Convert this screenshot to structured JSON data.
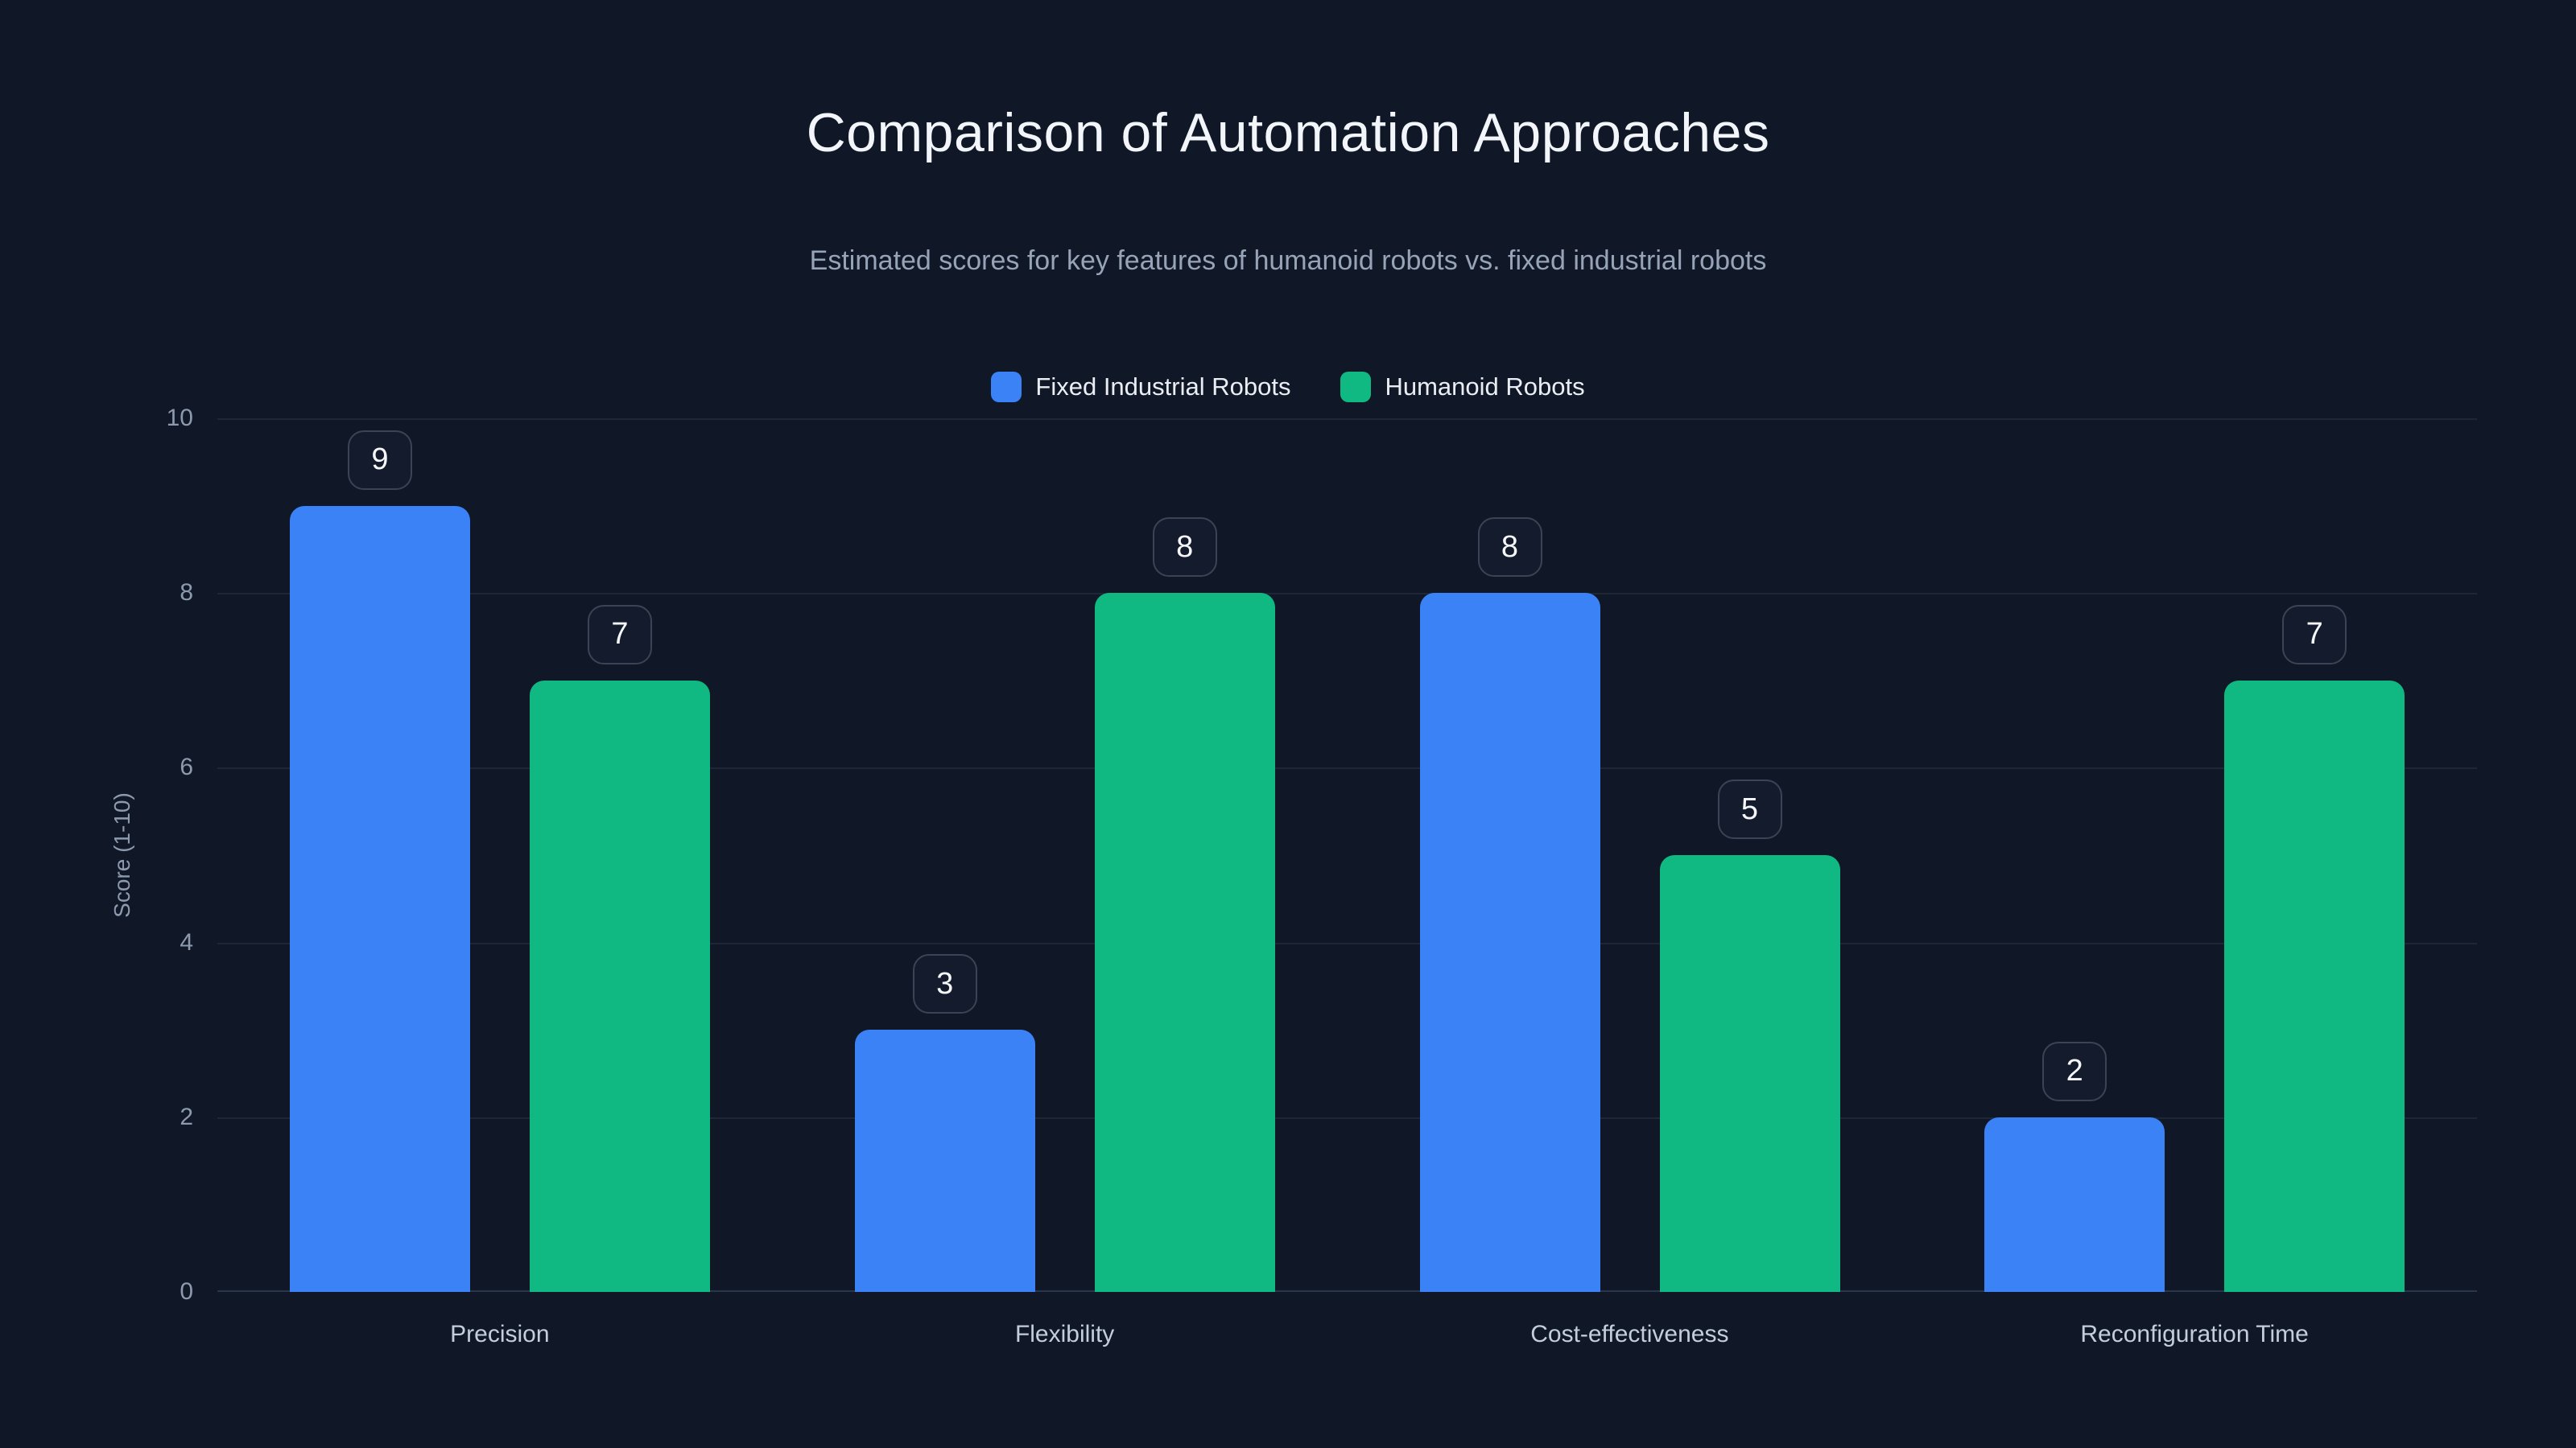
{
  "chart_data": {
    "type": "bar",
    "title": "Comparison of Automation Approaches",
    "subtitle": "Estimated scores for key features of humanoid robots vs. fixed industrial robots",
    "categories": [
      "Precision",
      "Flexibility",
      "Cost-effectiveness",
      "Reconfiguration Time"
    ],
    "series": [
      {
        "name": "Fixed Industrial Robots",
        "color": "#3b82f6",
        "values": [
          9,
          3,
          8,
          2
        ]
      },
      {
        "name": "Humanoid Robots",
        "color": "#10b981",
        "values": [
          7,
          8,
          5,
          7
        ]
      }
    ],
    "xlabel": "",
    "ylabel": "Score (1-10)",
    "ylim": [
      0,
      10
    ],
    "yticks": [
      0,
      2,
      4,
      6,
      8,
      10
    ],
    "grid": "horizontal gridlines only",
    "legend_position": "top center",
    "value_labels": "rounded badge above each bar"
  },
  "colors": {
    "background": "#101828",
    "title_text": "#f2f6fa",
    "subtitle_text": "#97a3b6",
    "legend_text": "#eaeef4",
    "tick_text": "#8d9aae",
    "category_text": "#c4cedb",
    "gridline": "#1e2737",
    "baseline": "#2a3649",
    "badge_border": "#3b4354",
    "badge_background": "#131b2c",
    "badge_text": "#f5f7fa",
    "series_fixed_industrial": "#3b82f6",
    "series_humanoid": "#10b981"
  }
}
